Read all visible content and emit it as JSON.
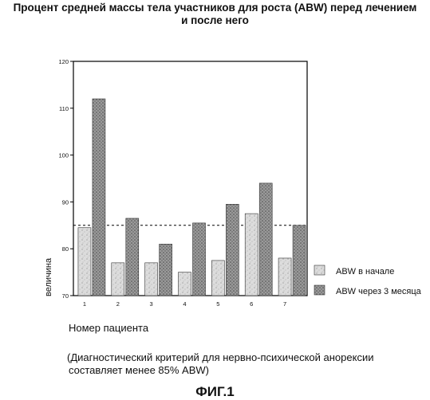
{
  "title_line1": "Процент средней массы тела участников для роста (ABW) перед лечением",
  "title_line2": "и после него",
  "xlabel": "Номер пациента",
  "footnote_line1": "(Диагностический критерий для нервно-психической анорексии",
  "footnote_line2": "составляет менее 85% ABW)",
  "figure_label": "ФИГ.1",
  "colors": {
    "series_start": "#d6d6d6",
    "series_after": "#8e8e8e",
    "threshold": "#000000"
  },
  "chart_data": {
    "type": "bar",
    "categories": [
      "1",
      "2",
      "3",
      "4",
      "5",
      "6",
      "7"
    ],
    "series": [
      {
        "name": "ABW в начале",
        "values": [
          84.5,
          77,
          77,
          75,
          77.5,
          87.5,
          78
        ]
      },
      {
        "name": "ABW через 3 месяца",
        "values": [
          112,
          86.5,
          81,
          85.5,
          89.5,
          94,
          85
        ]
      }
    ],
    "ylabel": "величина",
    "ylim": [
      70,
      120
    ],
    "yticks": [
      70,
      80,
      90,
      100,
      110,
      120
    ],
    "threshold": 85,
    "legend_position": "right"
  }
}
